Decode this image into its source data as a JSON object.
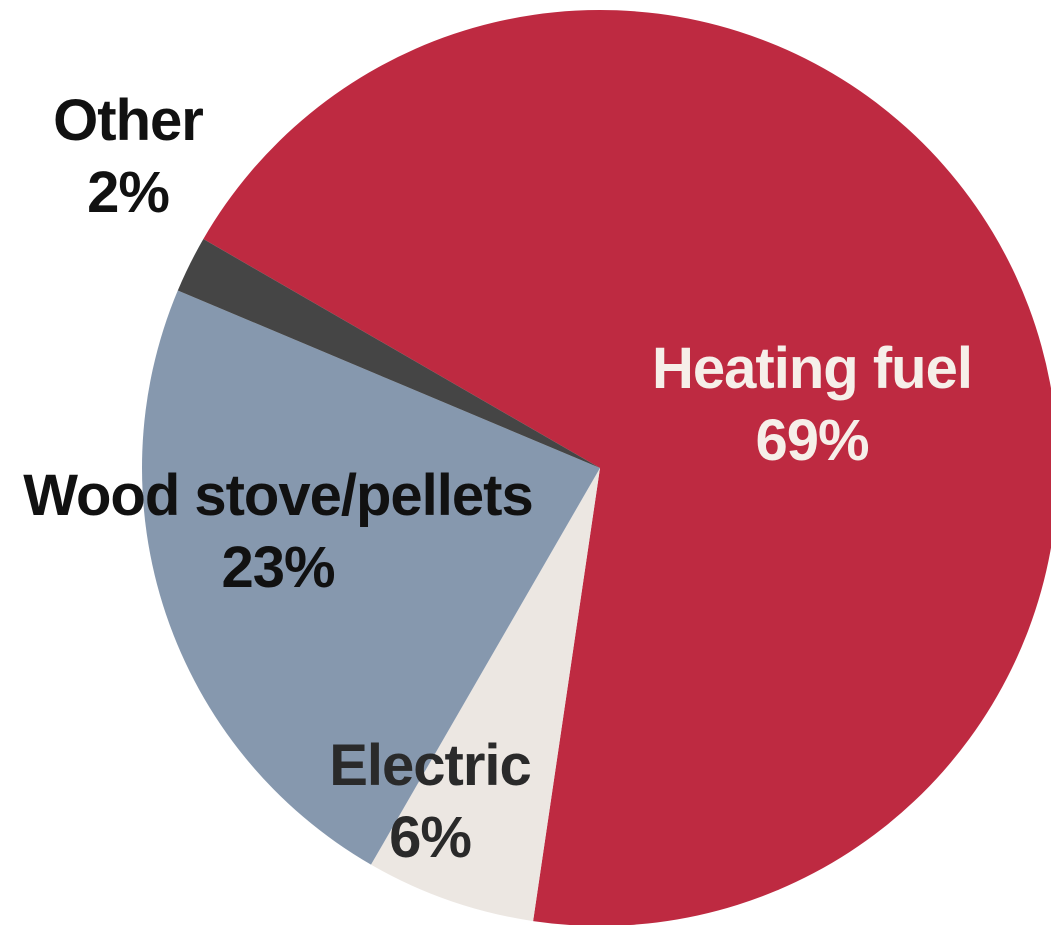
{
  "chart_data": {
    "type": "pie",
    "slices": [
      {
        "label": "Heating fuel",
        "value": 69,
        "value_label": "69%",
        "color": "#be2a41",
        "text_color": "#f6efe9"
      },
      {
        "label": "Electric",
        "value": 6,
        "value_label": "6%",
        "color": "#ece7e2",
        "text_color": "#2a2a2a"
      },
      {
        "label": "Wood stove/pellets",
        "value": 23,
        "value_label": "23%",
        "color": "#8698ae",
        "text_color": "#111111"
      },
      {
        "label": "Other",
        "value": 2,
        "value_label": "2%",
        "color": "#454545",
        "text_color": "#111111"
      }
    ]
  }
}
